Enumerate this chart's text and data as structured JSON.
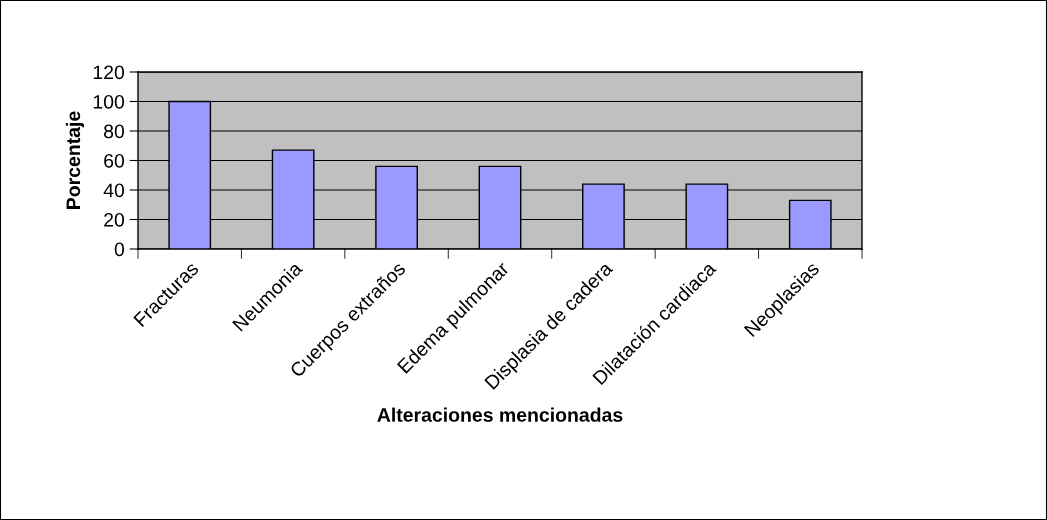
{
  "chart_data": {
    "type": "bar",
    "xlabel": "Alteraciones mencionadas",
    "ylabel": "Porcentaje",
    "categories": [
      "Fracturas",
      "Neumonia",
      "Cuerpos extraños",
      "Edema pulmonar",
      "Displasia de cadera",
      "Dilatación cardiaca",
      "Neoplasias"
    ],
    "values": [
      100,
      67,
      56,
      56,
      44,
      44,
      33
    ],
    "color": "#9999ff",
    "ylim": [
      0,
      120
    ],
    "yticks": [
      0,
      20,
      40,
      60,
      80,
      100,
      120
    ],
    "grid": "y"
  }
}
